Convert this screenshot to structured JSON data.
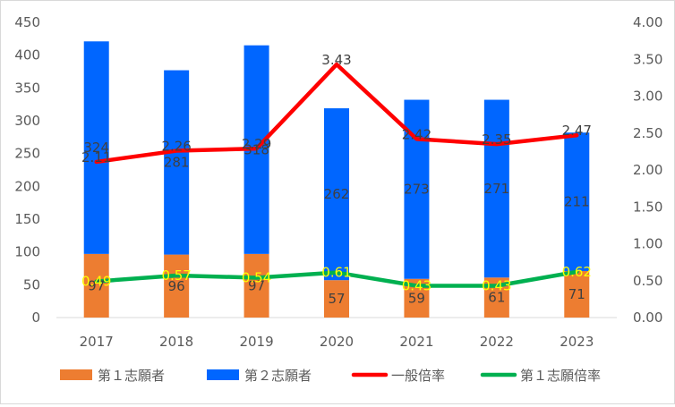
{
  "chart_data": {
    "type": "bar",
    "stacked": true,
    "categories": [
      "2017",
      "2018",
      "2019",
      "2020",
      "2021",
      "2022",
      "2023"
    ],
    "series": [
      {
        "name": "第１志願者",
        "kind": "bar",
        "axis": "left",
        "color": "#ed7d31",
        "values": [
          97,
          96,
          97,
          57,
          59,
          61,
          71
        ]
      },
      {
        "name": "第２志願者",
        "kind": "bar",
        "axis": "left",
        "color": "#0066ff",
        "values": [
          324,
          281,
          318,
          262,
          273,
          271,
          211
        ]
      },
      {
        "name": "一般倍率",
        "kind": "line",
        "axis": "right",
        "color": "#ff0000",
        "values": [
          2.11,
          2.26,
          2.29,
          3.43,
          2.42,
          2.35,
          2.47
        ]
      },
      {
        "name": "第１志願倍率",
        "kind": "line",
        "axis": "right",
        "color": "#00b050",
        "values": [
          0.49,
          0.57,
          0.54,
          0.61,
          0.43,
          0.43,
          0.62
        ]
      }
    ],
    "point_labels": {
      "第１志願者": [
        "97",
        "96",
        "97",
        "57",
        "59",
        "61",
        "71"
      ],
      "第２志願者": [
        "324",
        "281",
        "318",
        "262",
        "273",
        "271",
        "211"
      ],
      "一般倍率": [
        "2.11",
        "2.26",
        "2.29",
        "3.43",
        "2.42",
        "2.35",
        "2.47"
      ],
      "第１志願倍率": [
        "0.49",
        "0.57",
        "0.54",
        "0.61",
        "0.43",
        "0.43",
        "0.62"
      ]
    },
    "ylim": [
      0,
      450
    ],
    "yticks": [
      "0",
      "50",
      "100",
      "150",
      "200",
      "250",
      "300",
      "350",
      "400",
      "450"
    ],
    "y2lim": [
      0,
      4
    ],
    "y2ticks": [
      "0.00",
      "0.50",
      "1.00",
      "1.50",
      "2.00",
      "2.50",
      "3.00",
      "3.50",
      "4.00"
    ],
    "grid": false,
    "legend_position": "bottom"
  }
}
